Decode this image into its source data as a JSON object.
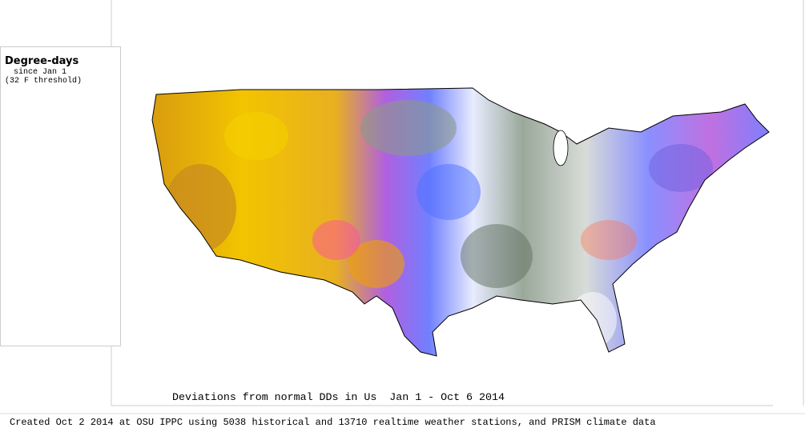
{
  "legend": {
    "title": "Degree-days",
    "subtitle": "since Jan 1",
    "threshold": "(32 F threshold)"
  },
  "map": {
    "caption": "Deviations from normal DDs in Us  Jan 1 - Oct 6 2014"
  },
  "footer": {
    "credit": "Created Oct 2 2014 at OSU IPPC using 5038 historical and 13710 realtime weather stations, and PRISM climate data"
  }
}
